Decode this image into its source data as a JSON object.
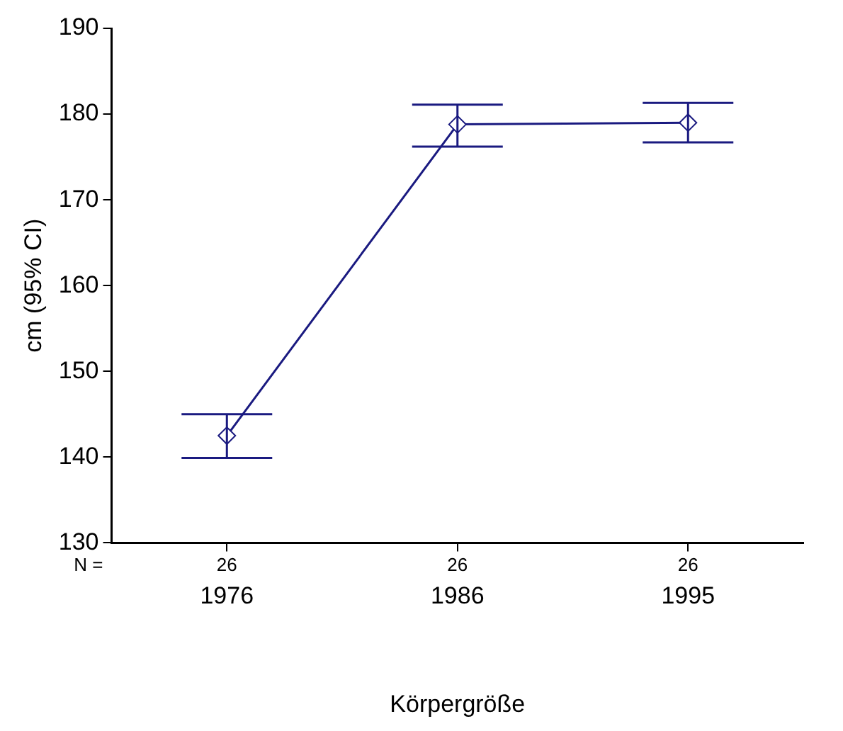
{
  "chart_data": {
    "type": "line",
    "xlabel": "Körpergröße",
    "ylabel": "cm (95% CI)",
    "categories": [
      "1976",
      "1986",
      "1995"
    ],
    "values": [
      142.5,
      178.8,
      179.0
    ],
    "errors": [
      [
        139.9,
        145.0
      ],
      [
        176.2,
        181.1
      ],
      [
        176.7,
        181.3
      ]
    ],
    "color": "#1a1a80",
    "ylim": [
      130,
      190
    ],
    "yticks": [
      130,
      140,
      150,
      160,
      170,
      180,
      190
    ],
    "grid": false,
    "legend": false,
    "marker": "diamond",
    "line_style": "solid",
    "annotations": [
      "N =",
      "26",
      "26",
      "26"
    ]
  }
}
